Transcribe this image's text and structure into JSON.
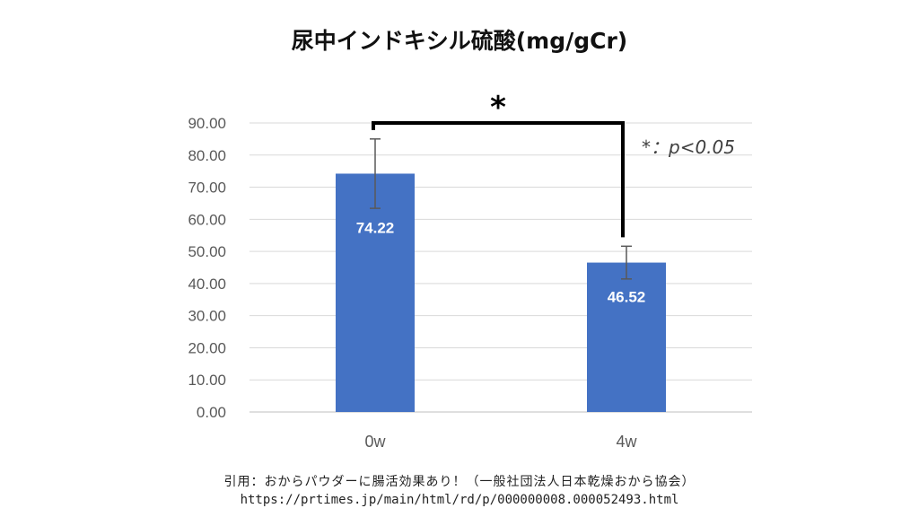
{
  "title": "尿中インドキシル硫酸(mg/gCr)",
  "chart_data": {
    "type": "bar",
    "categories": [
      "0w",
      "4w"
    ],
    "values": [
      74.22,
      46.52
    ],
    "value_labels": [
      "74.22",
      "46.52"
    ],
    "error_bars": [
      10.8,
      5.1
    ],
    "ylim": [
      0,
      90
    ],
    "yticks": [
      0,
      10,
      20,
      30,
      40,
      50,
      60,
      70,
      80,
      90
    ],
    "ytick_labels": [
      "0.00",
      "10.00",
      "20.00",
      "30.00",
      "40.00",
      "50.00",
      "60.00",
      "70.00",
      "80.00",
      "90.00"
    ],
    "grid": true,
    "bar_color": "#4472c4",
    "significance_marker": "*",
    "significance_note": "*：p<0.05"
  },
  "citation": {
    "line1": "引用：おからパウダーに腸活効果あり！（一般社団法人日本乾燥おから協会）",
    "line2": "https://prtimes.jp/main/html/rd/p/000000008.000052493.html"
  }
}
